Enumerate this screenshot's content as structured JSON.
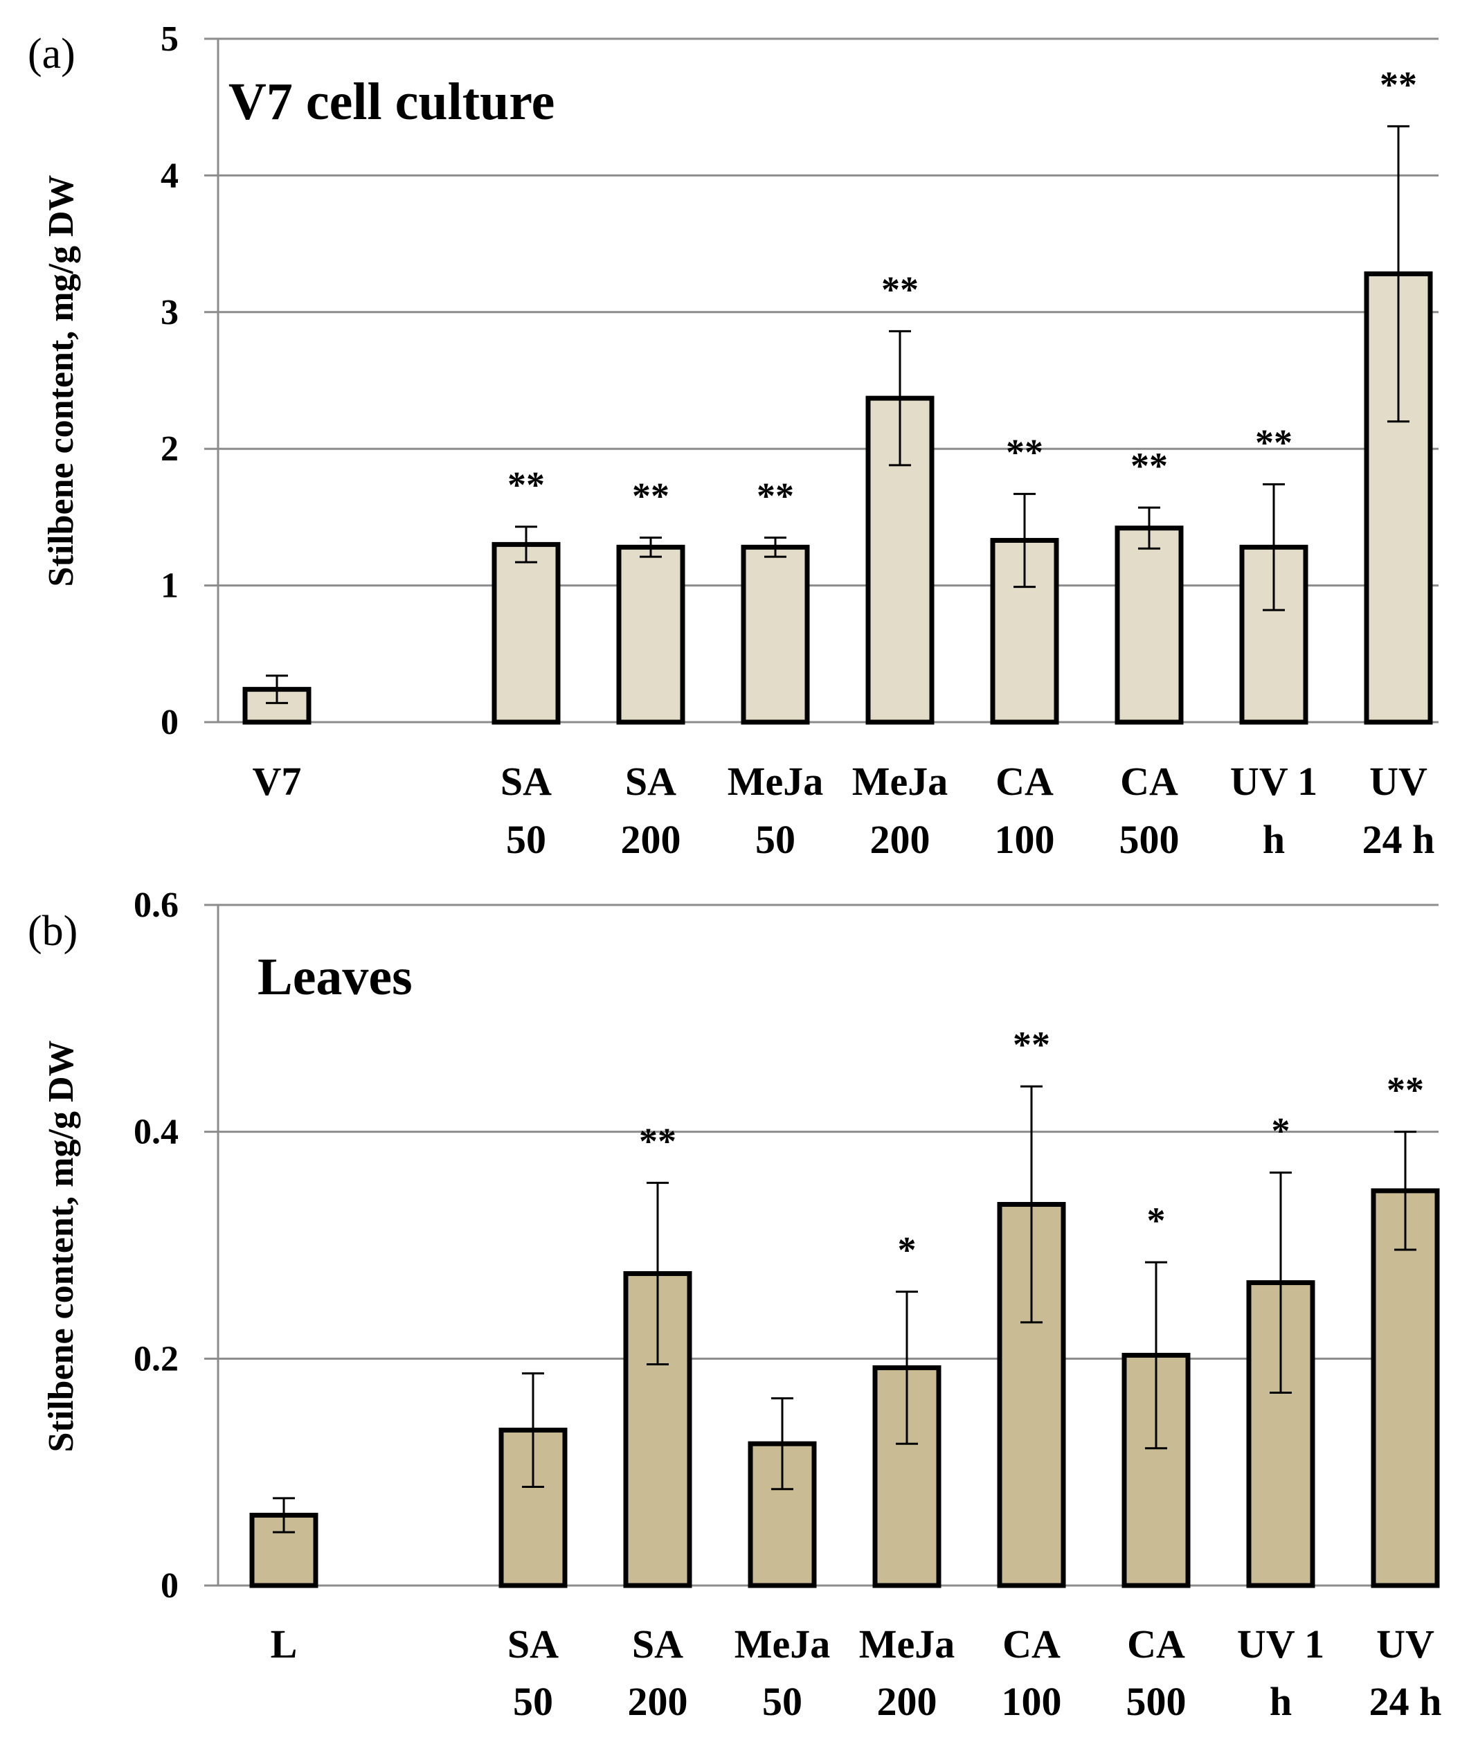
{
  "figure": {
    "colors": {
      "bar_a": "#E2DCC8",
      "bar_b": "#C9BB93",
      "stroke": "#000000",
      "grid": "#8C8C8C"
    }
  },
  "chart_data": [
    {
      "type": "bar",
      "panel_label": "(a)",
      "title": "V7 cell culture",
      "ylabel": "Stilbene content, mg/g DW",
      "ylim": [
        0,
        5
      ],
      "yticks": [
        "0",
        "1",
        "2",
        "3",
        "4",
        "5"
      ],
      "categories": [
        [
          "V7",
          ""
        ],
        [
          "",
          ""
        ],
        [
          "SA",
          "50"
        ],
        [
          "SA",
          "200"
        ],
        [
          "MeJa",
          "50"
        ],
        [
          "MeJa",
          "200"
        ],
        [
          "CA",
          "100"
        ],
        [
          "CA",
          "500"
        ],
        [
          "UV 1",
          "h"
        ],
        [
          "UV",
          "24 h"
        ]
      ],
      "values": [
        0.24,
        null,
        1.3,
        1.28,
        1.28,
        2.37,
        1.33,
        1.42,
        1.28,
        3.28
      ],
      "errors": [
        0.1,
        null,
        0.13,
        0.07,
        0.07,
        0.49,
        0.34,
        0.15,
        0.46,
        1.08
      ],
      "significance": [
        "",
        "",
        "**",
        "**",
        "**",
        "**",
        "**",
        "**",
        "**",
        "**"
      ],
      "bar_color_key": "bar_a"
    },
    {
      "type": "bar",
      "panel_label": "(b)",
      "title": "Leaves",
      "ylabel": "Stilbene content, mg/g DW",
      "ylim": [
        0,
        0.6
      ],
      "yticks": [
        "0",
        "0.2",
        "0.4",
        "0.6"
      ],
      "categories": [
        [
          "L",
          ""
        ],
        [
          "",
          ""
        ],
        [
          "SA",
          "50"
        ],
        [
          "SA",
          "200"
        ],
        [
          "MeJa",
          "50"
        ],
        [
          "MeJa",
          "200"
        ],
        [
          "CA",
          "100"
        ],
        [
          "CA",
          "500"
        ],
        [
          "UV 1",
          "h"
        ],
        [
          "UV",
          "24 h"
        ]
      ],
      "values": [
        0.062,
        null,
        0.137,
        0.275,
        0.125,
        0.192,
        0.336,
        0.203,
        0.267,
        0.348
      ],
      "errors": [
        0.015,
        null,
        0.05,
        0.08,
        0.04,
        0.067,
        0.104,
        0.082,
        0.097,
        0.052
      ],
      "significance": [
        "",
        "",
        "",
        "**",
        "",
        "*",
        "**",
        "*",
        "*",
        "**"
      ],
      "bar_color_key": "bar_b"
    }
  ]
}
